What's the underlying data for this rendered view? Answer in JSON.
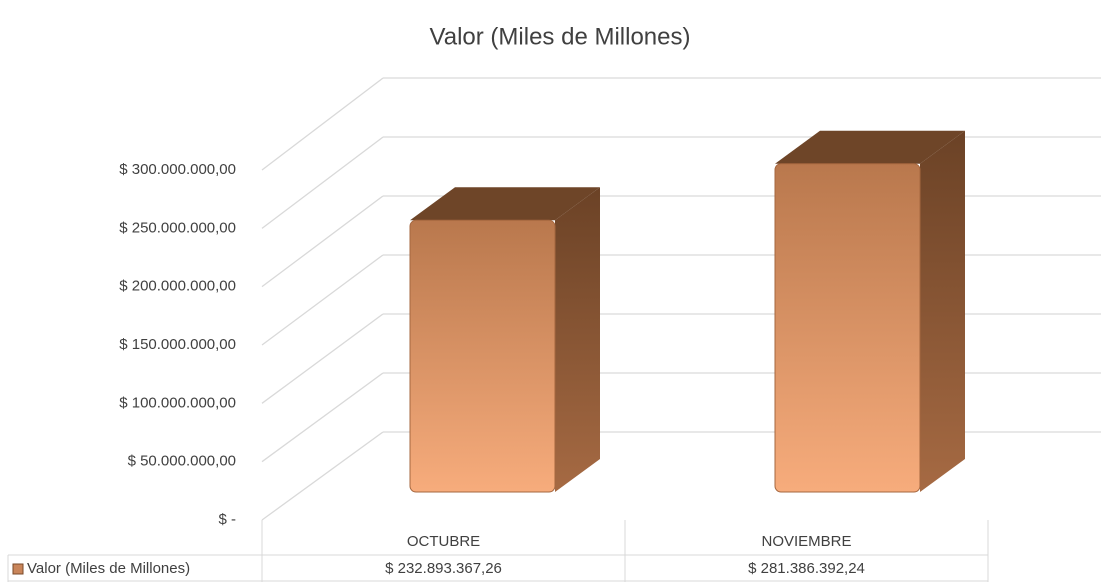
{
  "chart_data": {
    "type": "bar3d",
    "title": "Valor (Miles de Millones)",
    "categories": [
      "OCTUBRE",
      "NOVIEMBRE"
    ],
    "series": [
      {
        "name": "Valor (Miles de Millones)",
        "color": "#c9855a",
        "values": [
          232893367.26,
          281386392.24
        ],
        "value_labels": [
          "$ 232.893.367,26",
          "$ 281.386.392,24"
        ]
      }
    ],
    "ylim": [
      0,
      300000000
    ],
    "yticks": [
      {
        "value": 0,
        "label": "$ -"
      },
      {
        "value": 50000000,
        "label": "$ 50.000.000,00"
      },
      {
        "value": 100000000,
        "label": "$ 100.000.000,00"
      },
      {
        "value": 150000000,
        "label": "$ 150.000.000,00"
      },
      {
        "value": 200000000,
        "label": "$ 200.000.000,00"
      },
      {
        "value": 250000000,
        "label": "$ 250.000.000,00"
      },
      {
        "value": 300000000,
        "label": "$ 300.000.000,00"
      }
    ],
    "grid": true,
    "data_table": true
  }
}
